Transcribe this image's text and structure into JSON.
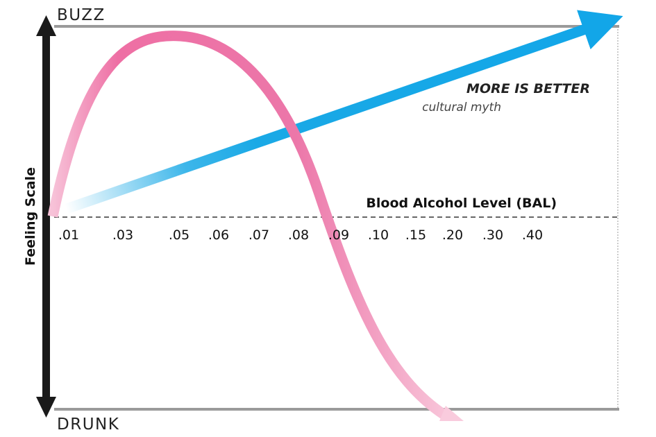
{
  "chart_data": {
    "type": "line",
    "top_label": "BUZZ",
    "bottom_label": "DRUNK",
    "ylabel": "Feeling Scale",
    "xlabel": "Blood Alcohol Level (BAL)",
    "x_ticks": [
      ".01",
      ".03",
      ".05",
      ".06",
      ".07",
      ".08",
      ".09",
      ".10",
      ".15",
      ".20",
      ".30",
      ".40"
    ],
    "series": [
      {
        "name": "MORE IS BETTER",
        "subtitle": "cultural myth",
        "color": "#1aa9e6"
      },
      {
        "color": "#ee6fa4"
      }
    ],
    "grid": false
  }
}
